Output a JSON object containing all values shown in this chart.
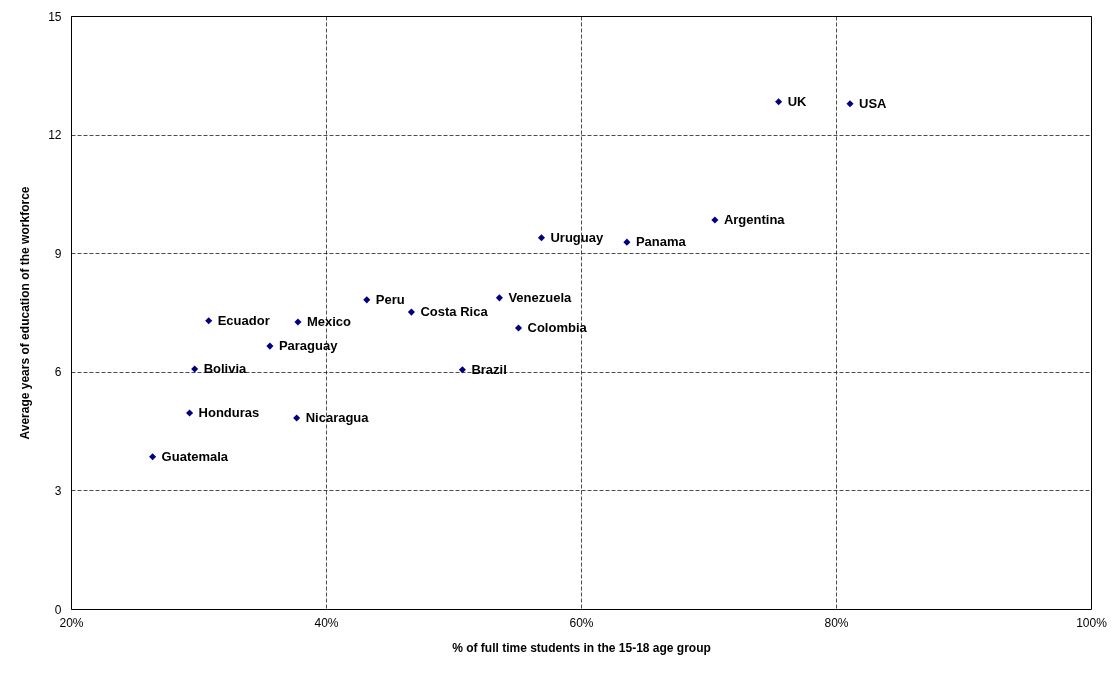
{
  "chart_data": {
    "type": "scatter",
    "xlabel": "% of full time students in the 15-18 age group",
    "ylabel": "Average years of education of the workforce",
    "x": [
      75.5,
      81.1,
      70.5,
      56.9,
      63.6,
      53.6,
      43.2,
      46.7,
      55.1,
      30.8,
      37.8,
      35.6,
      29.7,
      50.7,
      29.3,
      37.7,
      26.4
    ],
    "series": [
      {
        "color": "#000080",
        "values": [
          12.83,
          12.78,
          9.84,
          9.39,
          9.28,
          7.87,
          7.82,
          7.51,
          7.11,
          7.29,
          7.26,
          6.65,
          6.07,
          6.05,
          4.96,
          4.83,
          3.85
        ]
      }
    ],
    "annotations": [
      {
        "text": "UK",
        "x": 75.5,
        "y": 12.83
      },
      {
        "text": "USA",
        "x": 81.1,
        "y": 12.78
      },
      {
        "text": "Argentina",
        "x": 70.5,
        "y": 9.84
      },
      {
        "text": "Uruguay",
        "x": 56.9,
        "y": 9.39
      },
      {
        "text": "Panama",
        "x": 63.6,
        "y": 9.28
      },
      {
        "text": "Venezuela",
        "x": 53.6,
        "y": 7.87
      },
      {
        "text": "Peru",
        "x": 43.2,
        "y": 7.82
      },
      {
        "text": "Costa Rica",
        "x": 46.7,
        "y": 7.51
      },
      {
        "text": "Colombia",
        "x": 55.1,
        "y": 7.11
      },
      {
        "text": "Ecuador",
        "x": 30.8,
        "y": 7.29
      },
      {
        "text": "Mexico",
        "x": 37.8,
        "y": 7.26
      },
      {
        "text": "Paraguay",
        "x": 35.6,
        "y": 6.65
      },
      {
        "text": "Bolivia",
        "x": 29.7,
        "y": 6.07
      },
      {
        "text": "Brazil",
        "x": 50.7,
        "y": 6.05
      },
      {
        "text": "Honduras",
        "x": 29.3,
        "y": 4.96
      },
      {
        "text": "Nicaragua",
        "x": 37.7,
        "y": 4.83
      },
      {
        "text": "Guatemala",
        "x": 26.4,
        "y": 3.85
      }
    ],
    "xlim": [
      20,
      100
    ],
    "xticks": [
      {
        "value": 20,
        "label": "20%"
      },
      {
        "value": 40,
        "label": "40%"
      },
      {
        "value": 60,
        "label": "60%"
      },
      {
        "value": 80,
        "label": "80%"
      },
      {
        "value": 100,
        "label": "100%"
      }
    ],
    "ylim": [
      0,
      15
    ],
    "yticks": [
      0,
      3,
      6,
      9,
      12,
      15
    ],
    "grid": true,
    "marker": "diamond"
  }
}
